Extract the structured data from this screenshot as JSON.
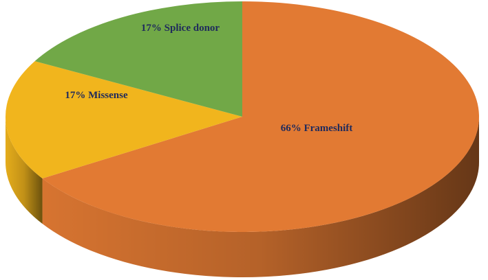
{
  "chart_data": {
    "type": "pie",
    "categories": [
      "Frameshift",
      "Missense",
      "Splice donor"
    ],
    "values": [
      66,
      17,
      17
    ],
    "value_labels": [
      "66%",
      "17%",
      "17%"
    ],
    "colors": [
      "#e27a33",
      "#f1b51d",
      "#71a847"
    ]
  }
}
